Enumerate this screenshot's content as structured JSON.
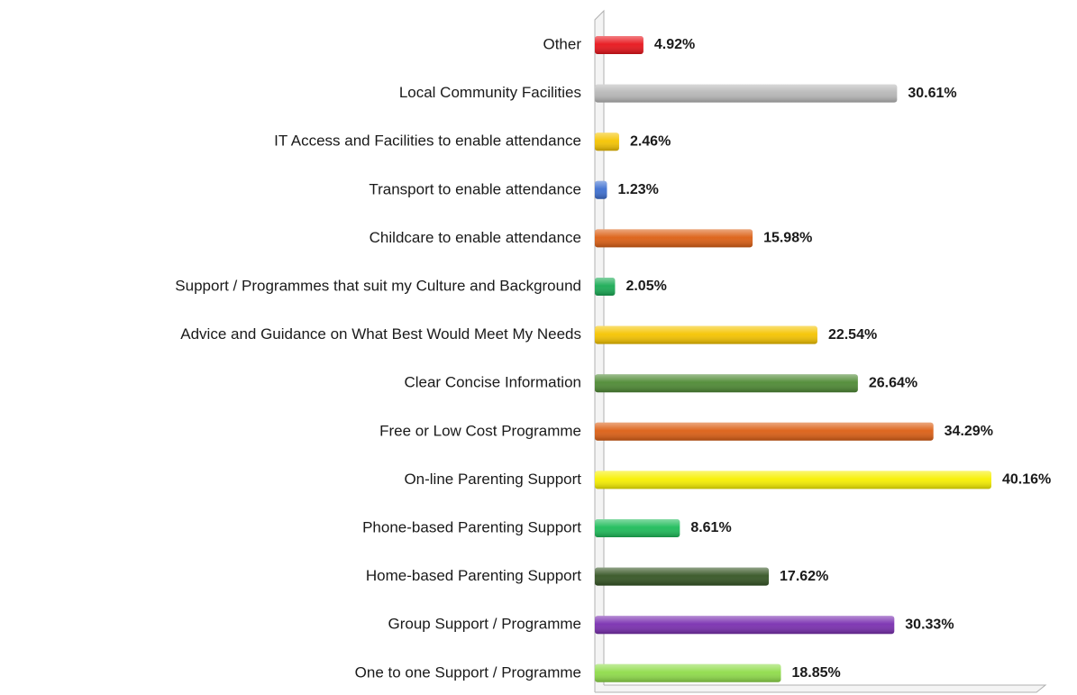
{
  "chart_data": {
    "type": "hbar",
    "categories": [
      "Other",
      "Local Community Facilities",
      "IT Access and Facilities to enable attendance",
      "Transport to enable attendance",
      "Childcare to enable attendance",
      "Support / Programmes that suit my Culture and Background",
      "Advice and Guidance on What Best Would Meet My Needs",
      "Clear Concise Information",
      "Free or Low Cost Programme",
      "On-line Parenting Support",
      "Phone-based Parenting Support",
      "Home-based Parenting Support",
      "Group Support / Programme",
      "One to one Support / Programme"
    ],
    "values": [
      4.92,
      30.61,
      2.46,
      1.23,
      15.98,
      2.05,
      22.54,
      26.64,
      34.29,
      40.16,
      8.61,
      17.62,
      30.33,
      18.85
    ],
    "value_labels": [
      "4.92%",
      "30.61%",
      "2.46%",
      "1.23%",
      "15.98%",
      "2.05%",
      "22.54%",
      "26.64%",
      "34.29%",
      "40.16%",
      "8.61%",
      "17.62%",
      "30.33%",
      "18.85%"
    ],
    "colors": [
      "#e8141b",
      "#b8b8b8",
      "#f5c400",
      "#3d6fd0",
      "#dc5f14",
      "#1aab55",
      "#f5c400",
      "#4e8a34",
      "#dc5f14",
      "#f7f000",
      "#1dbc5a",
      "#355524",
      "#7a2fb0",
      "#8fdc4a"
    ],
    "xlim": [
      0,
      45
    ]
  }
}
